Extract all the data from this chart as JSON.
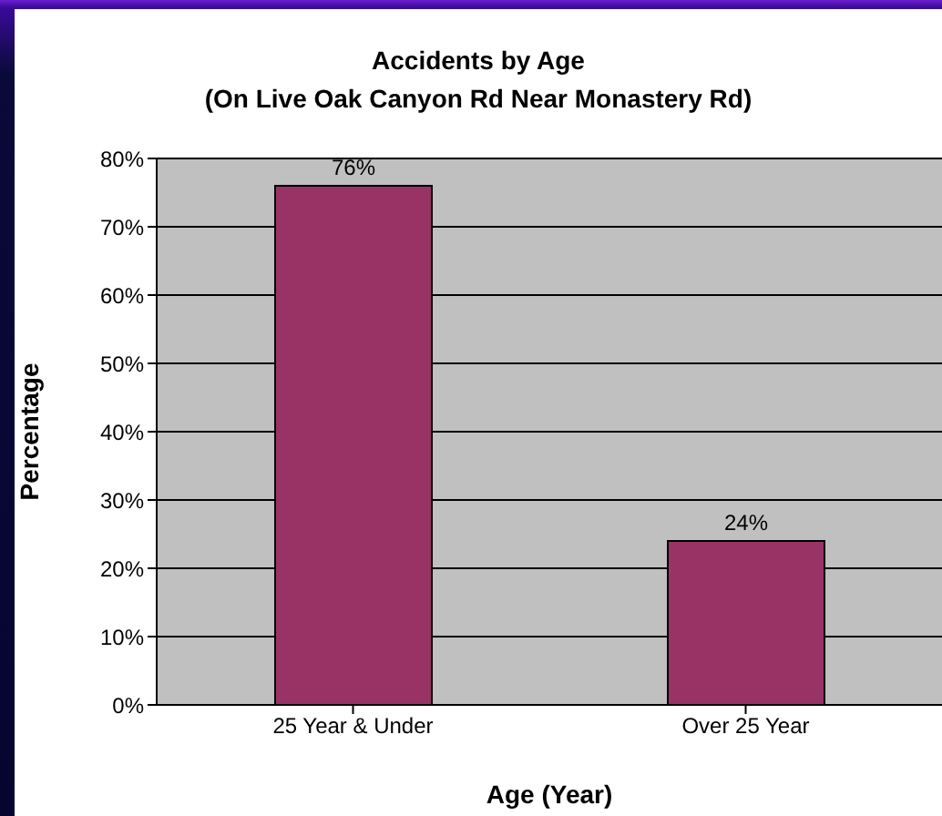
{
  "chart_data": {
    "type": "bar",
    "title": "Accidents by Age",
    "subtitle": "(On Live Oak Canyon Rd Near Monastery Rd)",
    "xlabel": "Age (Year)",
    "ylabel": "Percentage",
    "categories": [
      "25 Year & Under",
      "Over 25 Year"
    ],
    "values": [
      76,
      24
    ],
    "value_labels": [
      "76%",
      "24%"
    ],
    "color": "#993366",
    "ylim": [
      0,
      80
    ],
    "yticks": [
      {
        "value": 0,
        "label": "0%"
      },
      {
        "value": 10,
        "label": "10%"
      },
      {
        "value": 20,
        "label": "20%"
      },
      {
        "value": 30,
        "label": "30%"
      },
      {
        "value": 40,
        "label": "40%"
      },
      {
        "value": 50,
        "label": "50%"
      },
      {
        "value": 60,
        "label": "60%"
      },
      {
        "value": 70,
        "label": "70%"
      },
      {
        "value": 80,
        "label": "80%"
      }
    ],
    "grid": "y"
  }
}
